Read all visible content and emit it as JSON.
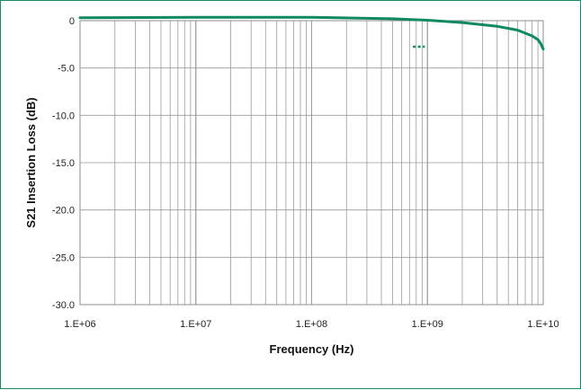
{
  "chart_data": {
    "type": "line",
    "title": "",
    "xlabel": "Frequency (Hz)",
    "ylabel": "S21 Insertion Loss (dB)",
    "x_scale": "log",
    "xlim": [
      1000000,
      10000000000
    ],
    "ylim": [
      -30,
      0
    ],
    "grid": true,
    "legend": "none",
    "x_tick_labels": [
      "1.E+06",
      "1.E+07",
      "1.E+08",
      "1.E+09",
      "1.E+10"
    ],
    "y_tick_labels": [
      "0",
      "-5.0",
      "-10.0",
      "-15.0",
      "-20.0",
      "-25.0",
      "-30.0"
    ],
    "series": [
      {
        "color": "#0f8a5f",
        "x": [
          1000000,
          10000000,
          100000000,
          500000000,
          1000000000,
          2000000000,
          4000000000,
          6000000000,
          8000000000,
          9000000000,
          9500000000,
          10000000000
        ],
        "y": [
          0.3,
          0.35,
          0.35,
          0.2,
          0.05,
          -0.2,
          -0.6,
          -1.0,
          -1.6,
          -2.0,
          -2.4,
          -3.0
        ]
      }
    ],
    "line_color": "#0f8a5f",
    "grid_color": "#9a9a9a"
  }
}
